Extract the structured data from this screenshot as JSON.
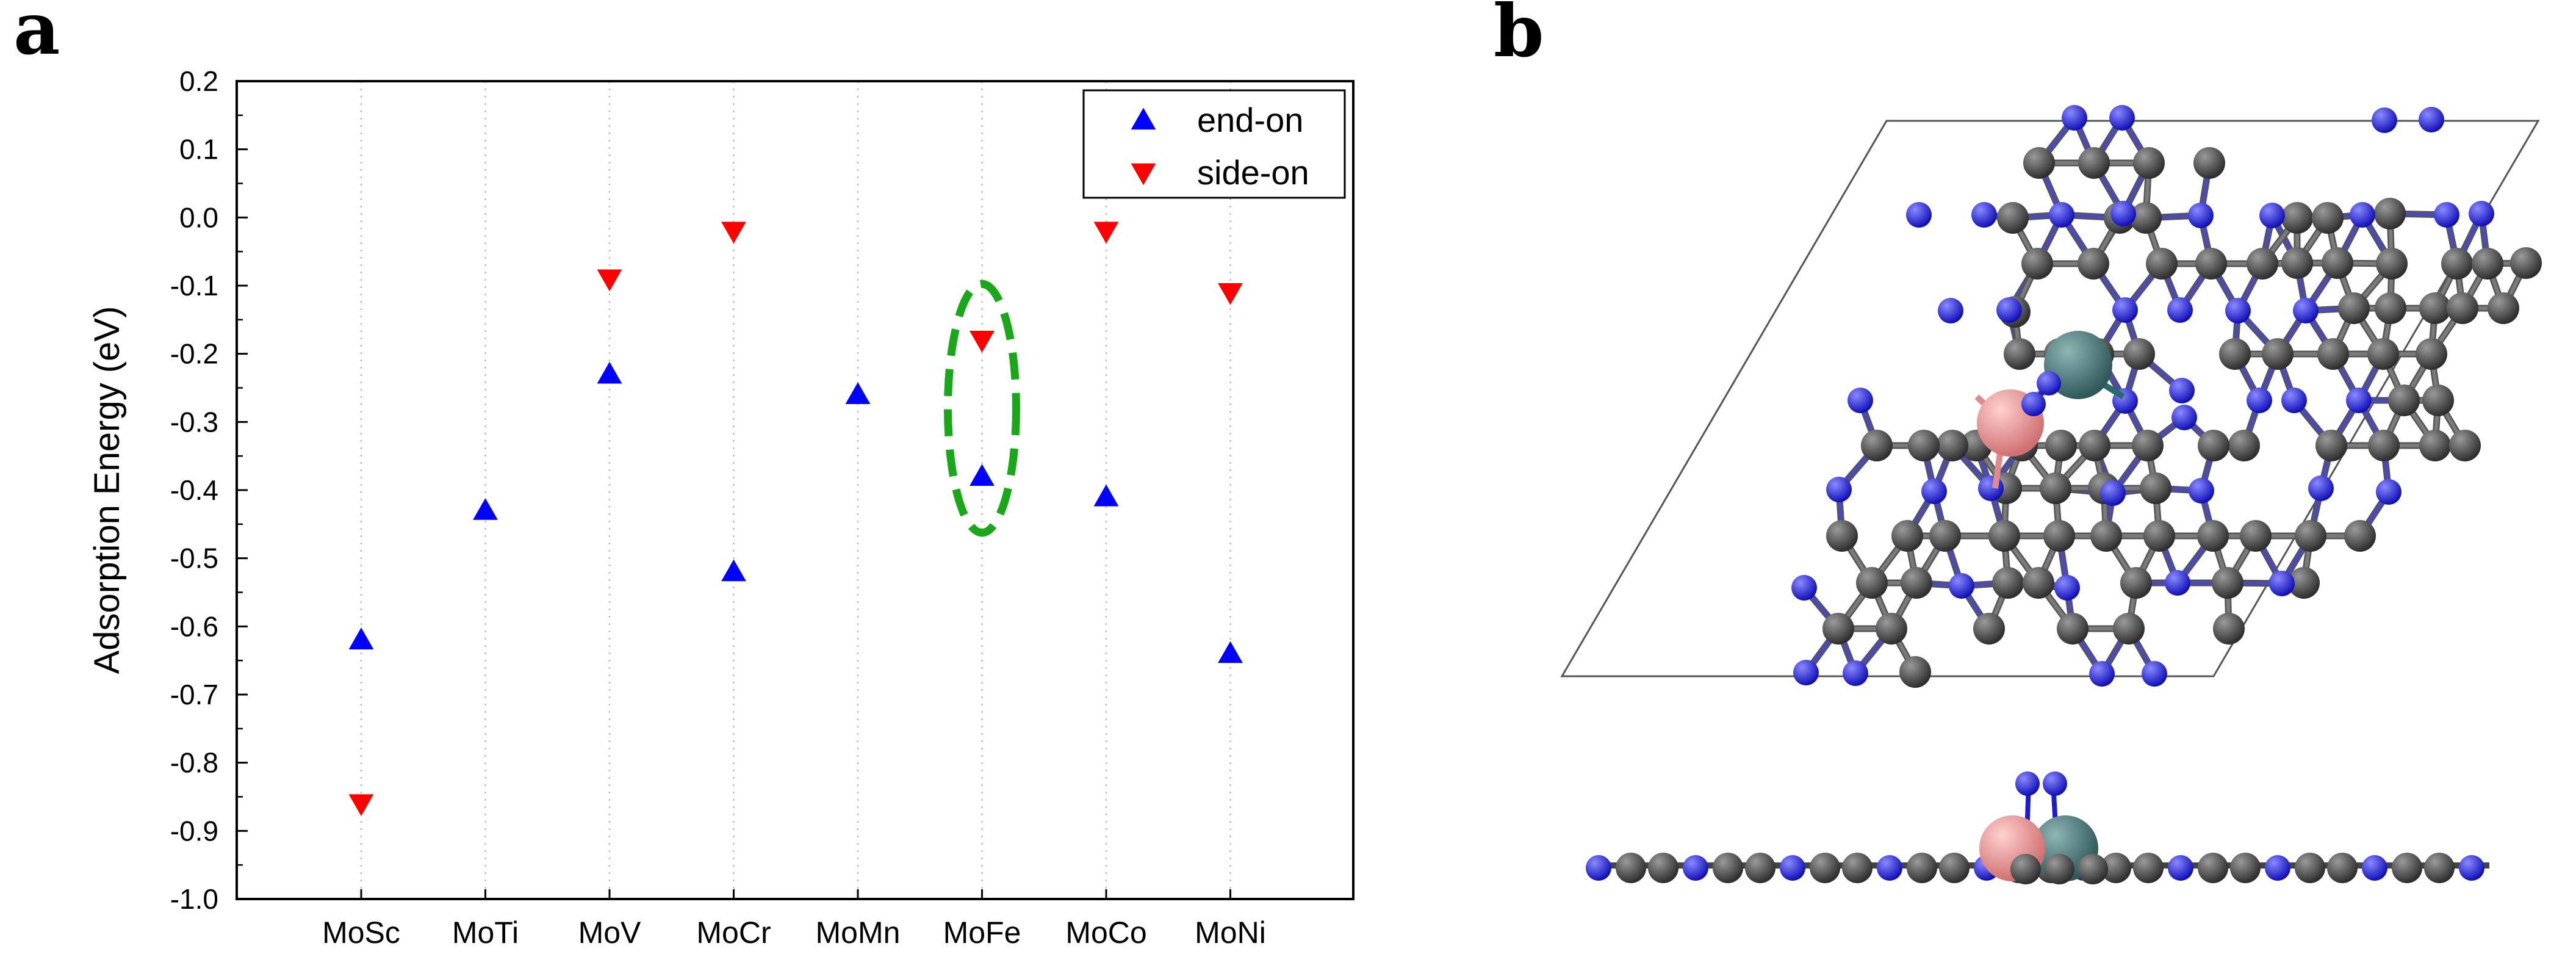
{
  "panels": {
    "a": {
      "letter": "a"
    },
    "b": {
      "letter": "b"
    }
  },
  "chart_data": {
    "type": "scatter",
    "title": "",
    "xlabel": "",
    "ylabel": "Adsorption Energy (eV)",
    "ylim": [
      -1.0,
      0.2
    ],
    "yticks": [
      "0.2",
      "0.1",
      "0.0",
      "-0.1",
      "-0.2",
      "-0.3",
      "-0.4",
      "-0.5",
      "-0.6",
      "-0.7",
      "-0.8",
      "-0.9",
      "-1.0"
    ],
    "categories": [
      "MoSc",
      "MoTi",
      "MoV",
      "MoCr",
      "MoMn",
      "MoFe",
      "MoCo",
      "MoNi"
    ],
    "series": [
      {
        "name": "end-on",
        "marker": "triangle-up",
        "color": "#0000ff",
        "values": [
          -0.62,
          -0.43,
          -0.23,
          -0.52,
          -0.26,
          -0.38,
          -0.41,
          -0.64
        ]
      },
      {
        "name": "side-on",
        "marker": "triangle-down",
        "color": "#ff0000",
        "values": [
          -0.86,
          null,
          -0.09,
          -0.02,
          null,
          -0.18,
          -0.02,
          -0.11
        ]
      }
    ],
    "legend_position": "top-right",
    "highlight": {
      "category": "MoFe",
      "color": "#1aa81a",
      "style": "dashed-ellipse"
    },
    "grid": "vertical-dotted"
  },
  "structure": {
    "atom_colors": {
      "nitrogen": "#1b1bd0",
      "carbon": "#4a4a4a",
      "mo": "#3d6b6b",
      "dopant": "#e08a8a",
      "cell": "#555555"
    }
  }
}
